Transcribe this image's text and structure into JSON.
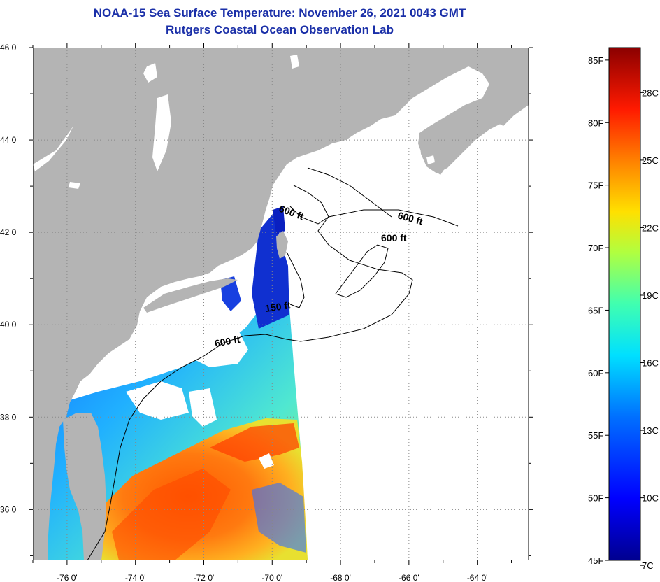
{
  "title": {
    "line1": "NOAA-15 Sea Surface Temperature:  November 26, 2021 0043 GMT",
    "line2": "Rutgers Coastal Ocean Observation Lab"
  },
  "map": {
    "lat_labels": [
      {
        "value": 46,
        "label": "46 0'"
      },
      {
        "value": 44,
        "label": "44 0'"
      },
      {
        "value": 42,
        "label": "42 0'"
      },
      {
        "value": 40,
        "label": "40 0'"
      },
      {
        "value": 38,
        "label": "38 0'"
      },
      {
        "value": 36,
        "label": "36 0'"
      }
    ],
    "lon_labels": [
      {
        "value": -76,
        "label": "-76 0'"
      },
      {
        "value": -74,
        "label": "-74 0'"
      },
      {
        "value": -72,
        "label": "-72 0'"
      },
      {
        "value": -70,
        "label": "-70 0'"
      },
      {
        "value": -68,
        "label": "-68 0'"
      },
      {
        "value": -66,
        "label": "-66 0'"
      },
      {
        "value": -64,
        "label": "-64 0'"
      }
    ],
    "contour_labels": [
      "600 ft",
      "600 ft",
      "600 ft",
      "150 ft",
      "600 ft"
    ],
    "colors": {
      "land": "#b4b4b4",
      "cloud": "#ffffff",
      "frame": "#000000"
    }
  },
  "colorbar": {
    "fahrenheit": [
      "85F",
      "80F",
      "75F",
      "70F",
      "65F",
      "60F",
      "55F",
      "50F",
      "45F"
    ],
    "celsius": [
      "28C",
      "25C",
      "22C",
      "19C",
      "16C",
      "13C",
      "10C",
      "7C"
    ],
    "range_f": [
      45,
      86
    ]
  }
}
